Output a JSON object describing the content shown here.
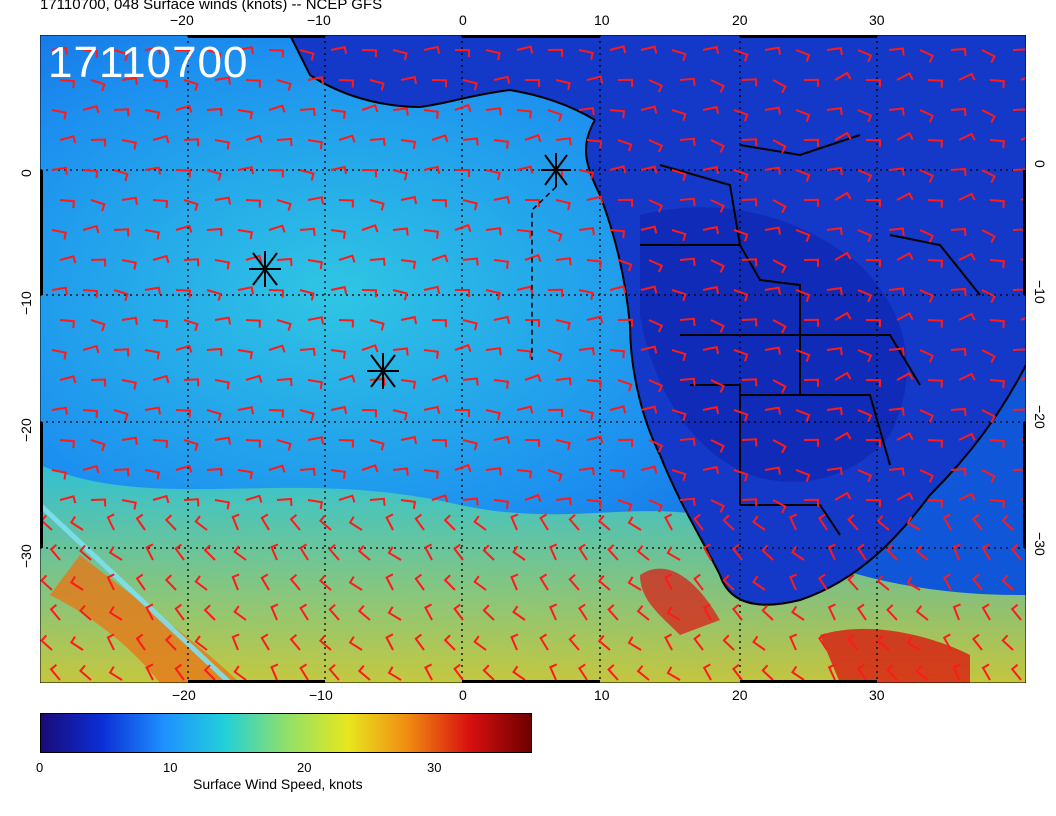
{
  "title": "17110700, 048 Surface winds (knots) -- NCEP GFS",
  "date_label": "17110700",
  "map": {
    "lon_ticks_top": [
      "−20",
      "−10",
      "0",
      "10",
      "20",
      "30"
    ],
    "lon_ticks_bottom": [
      "−20",
      "−10",
      "0",
      "10",
      "20",
      "30"
    ],
    "lat_ticks_left": [
      "0",
      "−10",
      "−20",
      "−30"
    ],
    "lat_ticks_right": [
      "0",
      "−10",
      "−20",
      "−30"
    ],
    "markers": [
      "storm-center-1",
      "storm-center-2",
      "storm-center-3"
    ]
  },
  "colorbar": {
    "title": "Surface Wind Speed, knots",
    "ticks": [
      "0",
      "10",
      "20",
      "30"
    ],
    "colors": [
      "#1a0a78",
      "#0b2fd6",
      "#1e90ff",
      "#22d0d8",
      "#8ee06a",
      "#e7e71e",
      "#f08a10",
      "#d81010",
      "#6e0000"
    ]
  }
}
